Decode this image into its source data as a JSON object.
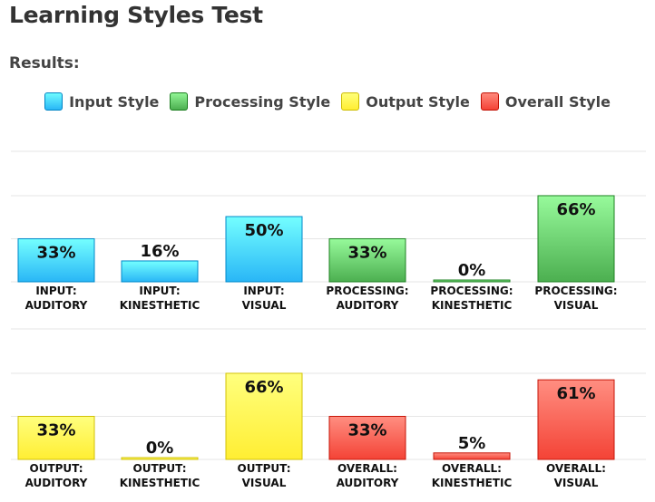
{
  "title": "Learning Styles Test",
  "subtitle": "Results:",
  "legend": [
    {
      "label": "Input Style",
      "color": "#29b6f6"
    },
    {
      "label": "Processing Style",
      "color": "#4caf50"
    },
    {
      "label": "Output Style",
      "color": "#ffee33"
    },
    {
      "label": "Overall Style",
      "color": "#f44336"
    }
  ],
  "chart_data": [
    {
      "type": "bar",
      "ylim": [
        0,
        100
      ],
      "grid": true,
      "legend_position": "top-center",
      "categories": [
        [
          "INPUT:",
          "AUDITORY"
        ],
        [
          "INPUT:",
          "KINESTHETIC"
        ],
        [
          "INPUT:",
          "VISUAL"
        ],
        [
          "PROCESSING:",
          "AUDITORY"
        ],
        [
          "PROCESSING:",
          "KINESTHETIC"
        ],
        [
          "PROCESSING:",
          "VISUAL"
        ]
      ],
      "values": [
        33,
        16,
        50,
        33,
        0,
        66
      ],
      "labels": [
        "33%",
        "16%",
        "50%",
        "33%",
        "0%",
        "66%"
      ],
      "series_index": [
        0,
        0,
        0,
        1,
        1,
        1
      ]
    },
    {
      "type": "bar",
      "ylim": [
        0,
        100
      ],
      "grid": true,
      "categories": [
        [
          "OUTPUT:",
          "AUDITORY"
        ],
        [
          "OUTPUT:",
          "KINESTHETIC"
        ],
        [
          "OUTPUT:",
          "VISUAL"
        ],
        [
          "OVERALL:",
          "AUDITORY"
        ],
        [
          "OVERALL:",
          "KINESTHETIC"
        ],
        [
          "OVERALL:",
          "VISUAL"
        ]
      ],
      "values": [
        33,
        0,
        66,
        33,
        5,
        61
      ],
      "labels": [
        "33%",
        "0%",
        "66%",
        "33%",
        "5%",
        "61%"
      ],
      "series_index": [
        2,
        2,
        2,
        3,
        3,
        3
      ]
    }
  ]
}
